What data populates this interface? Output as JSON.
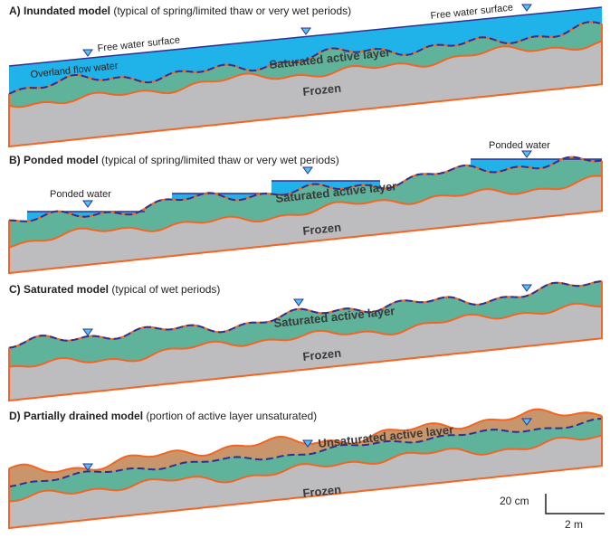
{
  "panels": [
    {
      "title": "A) Inundated model",
      "subtitle": "(typical of spring/limited thaw or very wet periods)",
      "labels": [
        "Free water surface",
        "Free water surface",
        "Overland flow water",
        "Saturated active layer",
        "Frozen"
      ]
    },
    {
      "title": "B) Ponded model",
      "subtitle": "(typical of spring/limited thaw or very wet periods)",
      "labels": [
        "Ponded water",
        "Ponded water",
        "Saturated active layer",
        "Frozen"
      ]
    },
    {
      "title": "C) Saturated model",
      "subtitle": "(typical of wet periods)",
      "labels": [
        "Saturated active layer",
        "Frozen"
      ]
    },
    {
      "title": "D) Partially drained model",
      "subtitle": "(portion of active layer unsaturated)",
      "labels": [
        "Unsaturated active layer",
        "Frozen"
      ]
    }
  ],
  "scale": {
    "vertical": "20 cm",
    "horizontal": "2 m"
  }
}
